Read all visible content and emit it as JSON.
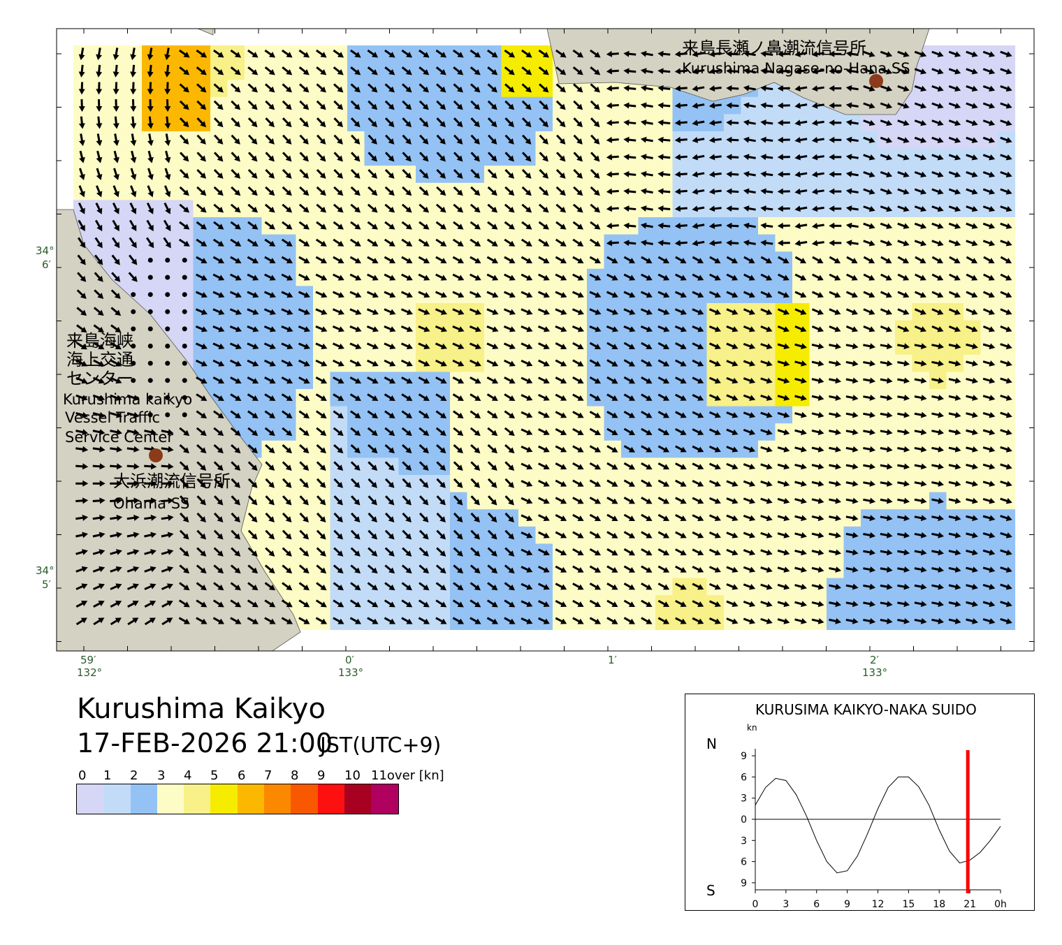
{
  "map": {
    "place_labels": [
      {
        "id": "nagase-jp",
        "text": "来島長瀬ノ鼻潮流信号所"
      },
      {
        "id": "nagase-en",
        "text": "Kurushima Nagase-no-Hana SS"
      },
      {
        "id": "vts-jp-1",
        "text": "来島海峡"
      },
      {
        "id": "vts-jp-2",
        "text": "海上交通"
      },
      {
        "id": "vts-jp-3",
        "text": "センター"
      },
      {
        "id": "vts-en-1",
        "text": "Kurushima kaikyo"
      },
      {
        "id": "vts-en-2",
        "text": "Vessel Traffic"
      },
      {
        "id": "vts-en-3",
        "text": "Service Center"
      },
      {
        "id": "ohama-jp",
        "text": "大浜潮流信号所"
      },
      {
        "id": "ohama-en",
        "text": "Ohama SS"
      }
    ],
    "lat_labels": [
      {
        "deg": "34°",
        "min": "6′"
      },
      {
        "deg": "34°",
        "min": "5′"
      }
    ],
    "lon_labels": [
      {
        "min": "59′",
        "deg": "132°"
      },
      {
        "min": "0′",
        "deg": "133°"
      },
      {
        "min": "1′",
        "deg": ""
      },
      {
        "min": "2′",
        "deg": "133°"
      }
    ],
    "colors": {
      "land": "#d4d2c2",
      "arrow": "#000000",
      "station_marker": "#8b3a1a"
    }
  },
  "title": "Kurushima Kaikyo",
  "datetime": "17-FEB-2026 21:00",
  "timezone": "JST(UTC+9)",
  "legend": {
    "ticks": [
      "0",
      "1",
      "2",
      "3",
      "4",
      "5",
      "6",
      "7",
      "8",
      "9",
      "10",
      "11over [kn]"
    ],
    "colors": [
      "#d6d6f6",
      "#c2dcf8",
      "#94c2f4",
      "#fefcc6",
      "#f8f088",
      "#f6ec00",
      "#fcb800",
      "#fc8800",
      "#f85800",
      "#fc1010",
      "#a80020",
      "#b00060"
    ]
  },
  "tide_chart": {
    "title": "KURUSIMA KAIKYO-NAKA SUIDO",
    "unit": "kn",
    "north_label": "N",
    "south_label": "S",
    "y_ticks": [
      "9",
      "6",
      "3",
      "0",
      "3",
      "6",
      "9"
    ],
    "x_ticks": [
      "0",
      "3",
      "6",
      "9",
      "12",
      "15",
      "18",
      "21",
      "0h"
    ],
    "now_hour": 20.8,
    "now_color": "#ff0000"
  },
  "chart_data": {
    "type": "line",
    "title": "KURUSIMA KAIKYO-NAKA SUIDO",
    "xlabel": "h",
    "ylabel": "kn",
    "xlim": [
      0,
      24
    ],
    "ylim": [
      -10,
      10
    ],
    "series": [
      {
        "x": [
          0,
          1,
          2,
          3,
          4,
          5,
          6,
          7,
          8,
          9,
          10,
          11,
          12,
          13,
          14,
          15,
          16,
          17,
          18,
          19,
          20,
          21,
          22,
          23,
          24
        ],
        "values": [
          2,
          4.5,
          5.8,
          5.5,
          3.5,
          0.5,
          -3,
          -6,
          -7.6,
          -7.3,
          -5.2,
          -2,
          1.5,
          4.5,
          6,
          6,
          4.6,
          2,
          -1.5,
          -4.5,
          -6.2,
          -5.8,
          -4.7,
          -3,
          -1
        ]
      }
    ]
  }
}
